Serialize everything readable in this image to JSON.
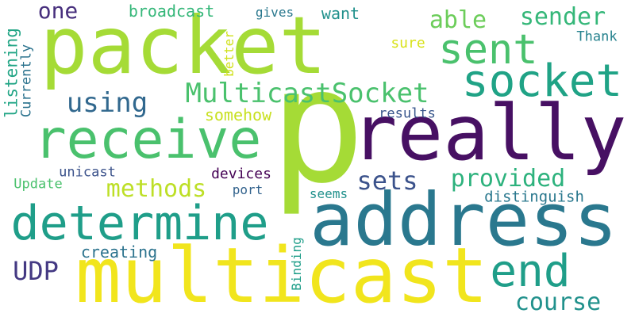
{
  "words": [
    {
      "id": "w-p",
      "text": "p",
      "color": "#a5db36",
      "orientation": "horizontal"
    },
    {
      "id": "w-packet",
      "text": "packet",
      "color": "#a5db36",
      "orientation": "horizontal"
    },
    {
      "id": "w-multicast",
      "text": "multicast",
      "color": "#f1e51d",
      "orientation": "horizontal"
    },
    {
      "id": "w-address",
      "text": "address",
      "color": "#2a788e",
      "orientation": "horizontal"
    },
    {
      "id": "w-really",
      "text": "really",
      "color": "#471063",
      "orientation": "horizontal"
    },
    {
      "id": "w-receive",
      "text": "receive",
      "color": "#4ac16d",
      "orientation": "horizontal"
    },
    {
      "id": "w-determine",
      "text": "determine",
      "color": "#1f9e89",
      "orientation": "horizontal"
    },
    {
      "id": "w-socket",
      "text": "socket",
      "color": "#20a386",
      "orientation": "horizontal"
    },
    {
      "id": "w-sent",
      "text": "sent",
      "color": "#4ac16d",
      "orientation": "horizontal"
    },
    {
      "id": "w-end",
      "text": "end",
      "color": "#1f9e89",
      "orientation": "horizontal"
    },
    {
      "id": "w-multicastsocket",
      "text": "MulticastSocket",
      "color": "#4ac16d",
      "orientation": "horizontal"
    },
    {
      "id": "w-using",
      "text": "using",
      "color": "#31688e",
      "orientation": "horizontal"
    },
    {
      "id": "w-able",
      "text": "able",
      "color": "#6ccd5a",
      "orientation": "horizontal"
    },
    {
      "id": "w-sender",
      "text": "sender",
      "color": "#35b779",
      "orientation": "horizontal"
    },
    {
      "id": "w-provided",
      "text": "provided",
      "color": "#2db27d",
      "orientation": "horizontal"
    },
    {
      "id": "w-methods",
      "text": "methods",
      "color": "#bddf26",
      "orientation": "horizontal"
    },
    {
      "id": "w-sets",
      "text": "sets",
      "color": "#3b528b",
      "orientation": "horizontal"
    },
    {
      "id": "w-one",
      "text": "one",
      "color": "#472f7d",
      "orientation": "horizontal"
    },
    {
      "id": "w-course",
      "text": "course",
      "color": "#21918c",
      "orientation": "horizontal"
    },
    {
      "id": "w-udp",
      "text": "UDP",
      "color": "#443983",
      "orientation": "horizontal"
    },
    {
      "id": "w-broadcast",
      "text": "broadcast",
      "color": "#35b779",
      "orientation": "horizontal"
    },
    {
      "id": "w-want",
      "text": "want",
      "color": "#21918c",
      "orientation": "horizontal"
    },
    {
      "id": "w-gives",
      "text": "gives",
      "color": "#2a788e",
      "orientation": "horizontal"
    },
    {
      "id": "w-sure",
      "text": "sure",
      "color": "#d8e219",
      "orientation": "horizontal"
    },
    {
      "id": "w-thank",
      "text": "Thank",
      "color": "#26828e",
      "orientation": "horizontal"
    },
    {
      "id": "w-better",
      "text": "better",
      "color": "#d0e11c",
      "orientation": "vertical"
    },
    {
      "id": "w-listening",
      "text": "listening",
      "color": "#21a585",
      "orientation": "vertical"
    },
    {
      "id": "w-currently",
      "text": "Currently",
      "color": "#2c738e",
      "orientation": "vertical"
    },
    {
      "id": "w-somehow",
      "text": "somehow",
      "color": "#c8e020",
      "orientation": "horizontal"
    },
    {
      "id": "w-results",
      "text": "results",
      "color": "#39568c",
      "orientation": "horizontal"
    },
    {
      "id": "w-unicast",
      "text": "unicast",
      "color": "#3b528b",
      "orientation": "horizontal"
    },
    {
      "id": "w-devices",
      "text": "devices",
      "color": "#440154",
      "orientation": "horizontal"
    },
    {
      "id": "w-update",
      "text": "Update",
      "color": "#4ac16d",
      "orientation": "horizontal"
    },
    {
      "id": "w-port",
      "text": "port",
      "color": "#33638d",
      "orientation": "horizontal"
    },
    {
      "id": "w-seems",
      "text": "seems",
      "color": "#21918c",
      "orientation": "horizontal"
    },
    {
      "id": "w-distinguish",
      "text": "distinguish",
      "color": "#2a788e",
      "orientation": "horizontal"
    },
    {
      "id": "w-creating",
      "text": "creating",
      "color": "#2c738e",
      "orientation": "horizontal"
    },
    {
      "id": "w-binding",
      "text": "Binding",
      "color": "#1f9e89",
      "orientation": "vertical"
    }
  ]
}
